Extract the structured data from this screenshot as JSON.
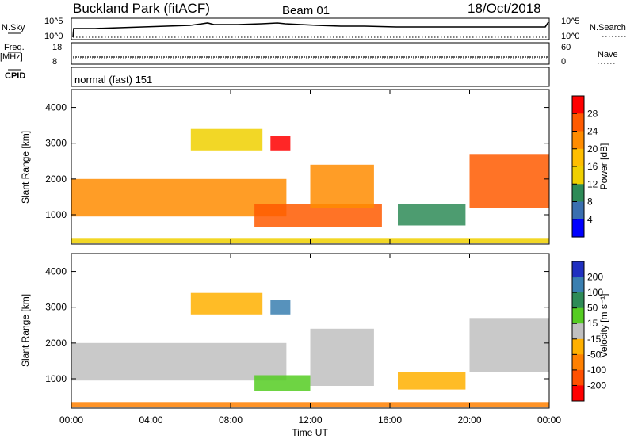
{
  "header": {
    "station": "Buckland Park (fitACF)",
    "beam": "Beam 01",
    "date": "18/Oct/2018"
  },
  "top_panels": {
    "nsky_label": "N.Sky",
    "nsky_ticks": [
      "10^5",
      "10^0"
    ],
    "nsearch_label": "N.Search",
    "nsearch_ticks": [
      "10^5",
      "10^0"
    ],
    "freq_label": "Freq.",
    "freq_unit": "[MHz]",
    "freq_ticks": [
      "18",
      "8"
    ],
    "nave_label": "Nave",
    "nave_ticks": [
      "60",
      "0"
    ],
    "cpid_label": "CPID",
    "cpid_text": "normal (fast) 151"
  },
  "axes": {
    "ylabel": "Slant Range [km]",
    "xlabel": "Time UT",
    "yticks": [
      "4000",
      "3000",
      "2000",
      "1000"
    ],
    "xticks": [
      "00:00",
      "04:00",
      "08:00",
      "12:00",
      "16:00",
      "20:00",
      "00:00"
    ]
  },
  "power_scale": {
    "label": "Power [dB]",
    "ticks": [
      "28",
      "24",
      "20",
      "16",
      "12",
      "8",
      "4"
    ],
    "colors": [
      "#ff0000",
      "#ff5a00",
      "#ff8c00",
      "#ffbe00",
      "#f0d000",
      "#2e8b57",
      "#3a6fb0",
      "#0000ff"
    ]
  },
  "velocity_scale": {
    "label": "Velocity [m s⁻¹]",
    "ticks": [
      "200",
      "100",
      "50",
      "15",
      "-15",
      "-50",
      "-100",
      "-200"
    ],
    "colors": [
      "#2030c0",
      "#3a7fb0",
      "#2e8b57",
      "#55cc22",
      "#c0c0c0",
      "#ffb000",
      "#ff8000",
      "#ff5000",
      "#ff0000"
    ]
  },
  "chart_data": [
    {
      "type": "heatmap",
      "title": "Power",
      "x_range_ut_hours": [
        0,
        24
      ],
      "y_range_km": [
        180,
        4500
      ],
      "xticks": [
        "00:00",
        "04:00",
        "08:00",
        "12:00",
        "16:00",
        "20:00",
        "00:00"
      ],
      "yticks": [
        4000,
        3000,
        2000,
        1000
      ],
      "colorbar": {
        "label": "Power [dB]",
        "ticks": [
          28,
          24,
          20,
          16,
          12,
          8,
          4
        ]
      },
      "echo_regions": [
        {
          "t_start": 0.0,
          "t_end": 24.0,
          "range_km": [
            200,
            350
          ],
          "dB": 14
        },
        {
          "t_start": 0.0,
          "t_end": 10.8,
          "range_km": [
            950,
            2000
          ],
          "dB": 22
        },
        {
          "t_start": 6.0,
          "t_end": 9.6,
          "range_km": [
            2800,
            3400
          ],
          "dB": 14
        },
        {
          "t_start": 10.0,
          "t_end": 11.0,
          "range_km": [
            2800,
            3200
          ],
          "dB": 30
        },
        {
          "t_start": 9.2,
          "t_end": 15.6,
          "range_km": [
            650,
            1300
          ],
          "dB": 24
        },
        {
          "t_start": 12.0,
          "t_end": 15.2,
          "range_km": [
            1200,
            2400
          ],
          "dB": 20
        },
        {
          "t_start": 16.4,
          "t_end": 19.8,
          "range_km": [
            700,
            1300
          ],
          "dB": 10
        },
        {
          "t_start": 20.0,
          "t_end": 24.0,
          "range_km": [
            1200,
            2700
          ],
          "dB": 24
        }
      ]
    },
    {
      "type": "heatmap",
      "title": "Velocity",
      "x_range_ut_hours": [
        0,
        24
      ],
      "y_range_km": [
        180,
        4500
      ],
      "xticks": [
        "00:00",
        "04:00",
        "08:00",
        "12:00",
        "16:00",
        "20:00",
        "00:00"
      ],
      "yticks": [
        4000,
        3000,
        2000,
        1000
      ],
      "colorbar": {
        "label": "Velocity [m s⁻¹]",
        "ticks": [
          200,
          100,
          50,
          15,
          -15,
          -50,
          -100,
          -200
        ]
      },
      "echo_regions": [
        {
          "t_start": 0.0,
          "t_end": 24.0,
          "range_km": [
            200,
            350
          ],
          "m_s": -50
        },
        {
          "t_start": 0.0,
          "t_end": 10.8,
          "range_km": [
            950,
            2000
          ],
          "m_s": 0
        },
        {
          "t_start": 6.0,
          "t_end": 9.6,
          "range_km": [
            2800,
            3400
          ],
          "m_s": -15
        },
        {
          "t_start": 10.0,
          "t_end": 11.0,
          "range_km": [
            2800,
            3200
          ],
          "m_s": 150
        },
        {
          "t_start": 9.2,
          "t_end": 12.0,
          "range_km": [
            650,
            1100
          ],
          "m_s": 30
        },
        {
          "t_start": 12.0,
          "t_end": 15.2,
          "range_km": [
            800,
            2400
          ],
          "m_s": 0
        },
        {
          "t_start": 16.4,
          "t_end": 19.8,
          "range_km": [
            700,
            1200
          ],
          "m_s": -30
        },
        {
          "t_start": 20.0,
          "t_end": 24.0,
          "range_km": [
            1200,
            2700
          ],
          "m_s": 0
        }
      ]
    }
  ]
}
